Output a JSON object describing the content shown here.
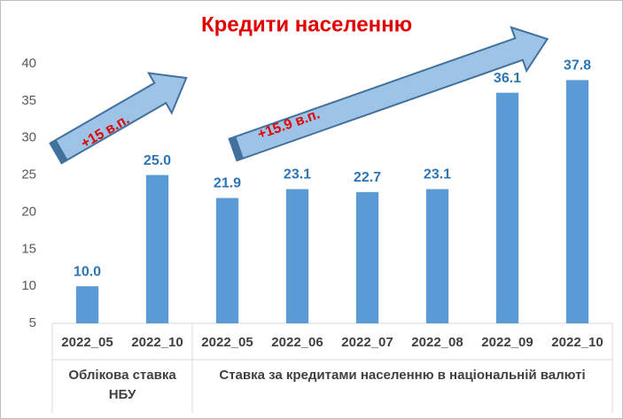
{
  "chart_data": {
    "type": "bar",
    "title": "Кредити населенню",
    "categories": [
      "2022_05",
      "2022_10",
      "2022_05",
      "2022_06",
      "2022_07",
      "2022_08",
      "2022_09",
      "2022_10"
    ],
    "groups": [
      {
        "label": "Облікова ставка НБУ",
        "count": 2
      },
      {
        "label": "Ставка  за кредитами населенню в національній валюті",
        "count": 6
      }
    ],
    "values": [
      10,
      25,
      21.9,
      23.1,
      22.7,
      23.1,
      36.1,
      37.8
    ],
    "value_labels": [
      "10.0",
      "25.0",
      "21.9",
      "23.1",
      "22.7",
      "23.1",
      "36.1",
      "37.8"
    ],
    "color": "#5b9bd5",
    "ylim": [
      5,
      40
    ],
    "yticks": [
      5,
      10,
      15,
      20,
      25,
      30,
      35,
      40
    ],
    "grid": false,
    "annotations": [
      "+15 в.п.",
      "+15.9 в.п."
    ]
  }
}
